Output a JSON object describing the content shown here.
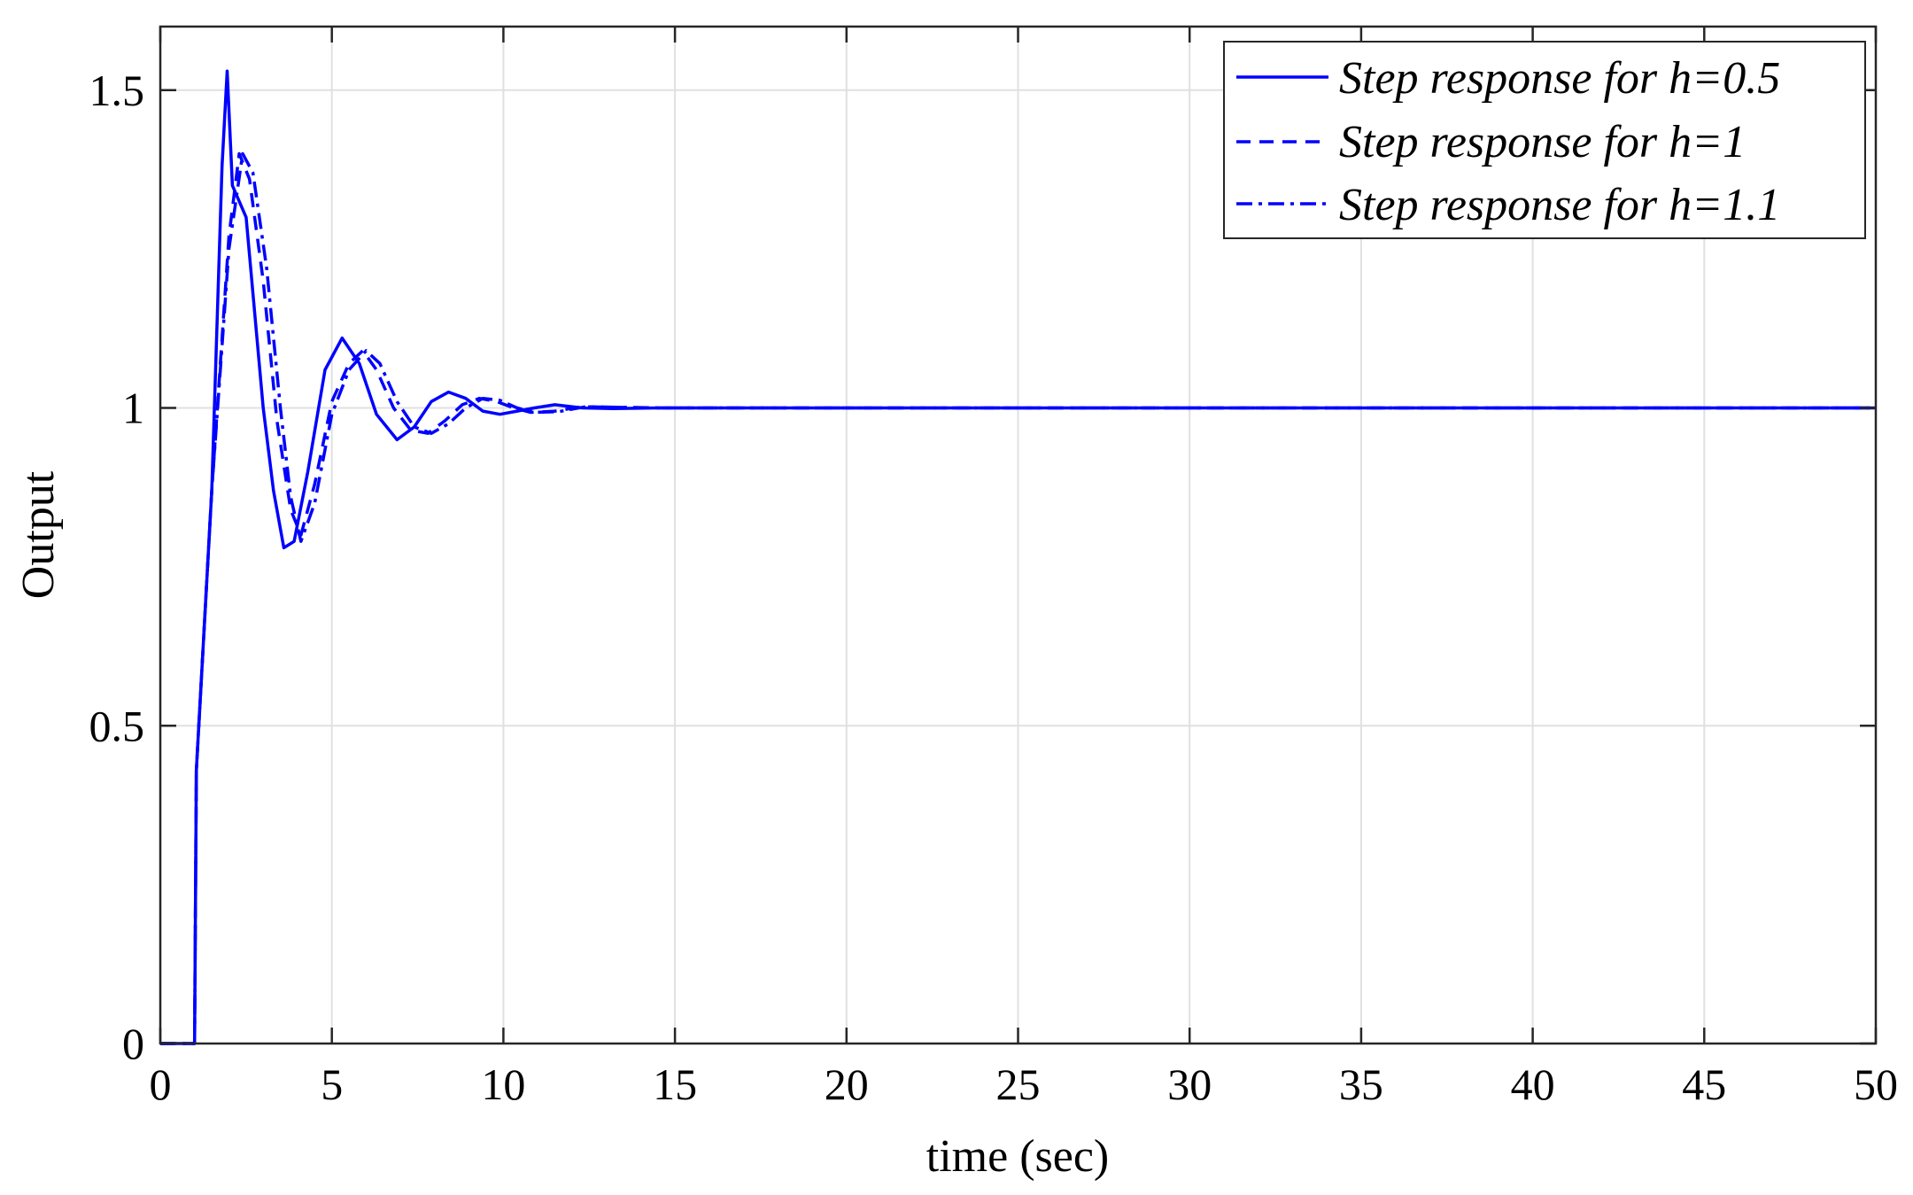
{
  "chart_data": {
    "type": "line",
    "title": "",
    "xlabel": "time (sec)",
    "ylabel": "Output",
    "xlim": [
      0,
      50
    ],
    "ylim": [
      0,
      1.6
    ],
    "xticks": [
      0,
      5,
      10,
      15,
      20,
      25,
      30,
      35,
      40,
      45,
      50
    ],
    "xtick_labels": [
      "0",
      "5",
      "10",
      "15",
      "20",
      "25",
      "30",
      "35",
      "40",
      "45",
      "50"
    ],
    "yticks": [
      0,
      0.5,
      1,
      1.5
    ],
    "ytick_labels": [
      "0",
      "0.5",
      "1",
      "1.5"
    ],
    "grid": true,
    "legend_position": "top-right",
    "line_color": "#0000ff",
    "series": [
      {
        "name": "Step response for h=0.5",
        "style": "solid",
        "x": [
          0,
          1,
          1.05,
          1.5,
          1.8,
          1.95,
          2.1,
          2.5,
          3.0,
          3.3,
          3.6,
          3.9,
          4.3,
          4.8,
          5.3,
          5.8,
          6.3,
          6.9,
          7.4,
          7.9,
          8.4,
          8.9,
          9.4,
          9.9,
          10.4,
          10.9,
          11.5,
          12.3,
          13.2,
          14.5,
          16,
          18,
          20,
          25,
          30,
          35,
          40,
          45,
          50
        ],
        "y": [
          0,
          0,
          0.43,
          0.87,
          1.38,
          1.53,
          1.35,
          1.3,
          1.0,
          0.87,
          0.78,
          0.79,
          0.9,
          1.06,
          1.11,
          1.07,
          0.99,
          0.95,
          0.97,
          1.01,
          1.025,
          1.015,
          0.995,
          0.99,
          0.995,
          1.0,
          1.005,
          1.0,
          0.999,
          1.0,
          1.0,
          1.0,
          1.0,
          1.0,
          1.0,
          1.0,
          1.0,
          1.0,
          1.0
        ]
      },
      {
        "name": "Step response for h=1",
        "style": "dashed",
        "x": [
          0,
          1,
          1.05,
          1.5,
          2.0,
          2.3,
          2.6,
          3.0,
          3.4,
          3.8,
          4.1,
          4.5,
          5.0,
          5.5,
          5.9,
          6.3,
          6.8,
          7.3,
          7.8,
          8.3,
          8.8,
          9.3,
          9.8,
          10.3,
          10.8,
          11.5,
          12.3,
          13.3,
          14.5,
          16,
          18,
          20,
          25,
          30,
          35,
          40,
          45,
          50
        ],
        "y": [
          0,
          0,
          0.43,
          0.87,
          1.27,
          1.4,
          1.36,
          1.2,
          0.98,
          0.84,
          0.8,
          0.88,
          1.01,
          1.07,
          1.09,
          1.06,
          1.0,
          0.965,
          0.96,
          0.98,
          1.005,
          1.015,
          1.01,
          1.0,
          0.993,
          0.995,
          1.002,
          1.001,
          1.0,
          1.0,
          1.0,
          1.0,
          1.0,
          1.0,
          1.0,
          1.0,
          1.0,
          1.0
        ]
      },
      {
        "name": "Step response for h=1.1",
        "style": "dashdot",
        "x": [
          0,
          1,
          1.05,
          1.5,
          2.0,
          2.4,
          2.7,
          3.1,
          3.5,
          3.8,
          4.1,
          4.5,
          5.0,
          5.5,
          6.0,
          6.4,
          6.9,
          7.4,
          7.9,
          8.4,
          8.9,
          9.4,
          9.9,
          10.4,
          10.9,
          11.6,
          12.4,
          13.4,
          14.6,
          16,
          18,
          20,
          25,
          30,
          35,
          40,
          45,
          50
        ],
        "y": [
          0,
          0,
          0.43,
          0.87,
          1.25,
          1.4,
          1.37,
          1.22,
          1.0,
          0.86,
          0.79,
          0.85,
          0.99,
          1.06,
          1.09,
          1.07,
          1.01,
          0.97,
          0.96,
          0.975,
          1.0,
          1.015,
          1.012,
          1.0,
          0.993,
          0.994,
          1.002,
          1.001,
          1.0,
          1.0,
          1.0,
          1.0,
          1.0,
          1.0,
          1.0,
          1.0,
          1.0,
          1.0
        ]
      }
    ]
  }
}
